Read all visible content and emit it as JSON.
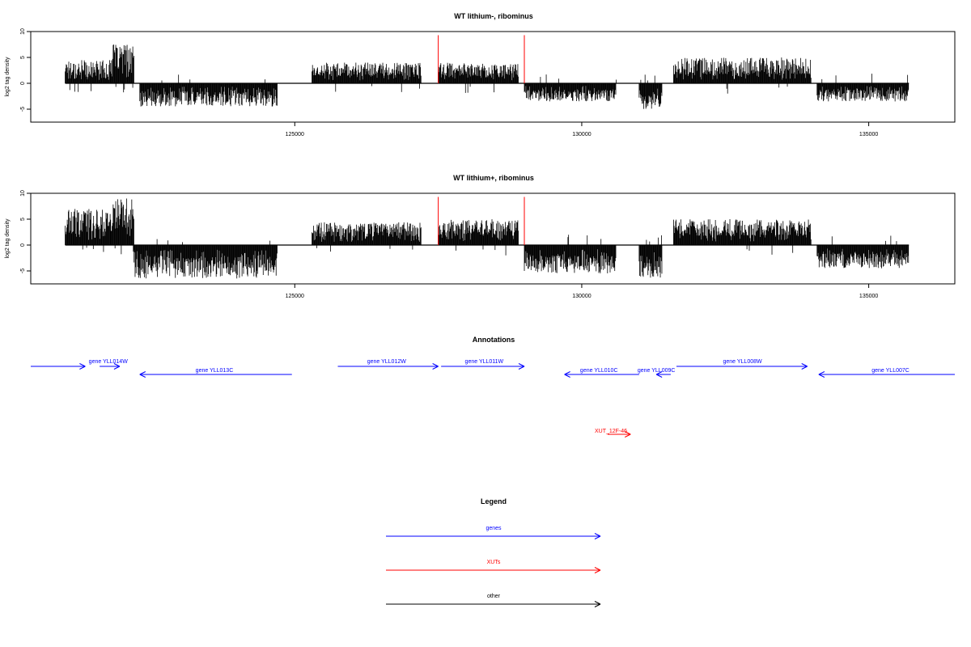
{
  "chart_data": [
    {
      "type": "bar",
      "title": "WT lithium-, ribominus",
      "xlabel": "",
      "ylabel": "log2 tag density",
      "xlim": [
        120400,
        136500
      ],
      "ylim": [
        -7.5,
        10
      ],
      "yticks": [
        -5,
        0,
        5,
        10
      ],
      "xticks": [
        125000,
        130000,
        135000
      ],
      "grid": false,
      "x_start": 121000,
      "x_end": 135700,
      "marker_positions": [
        127500,
        129000
      ],
      "marker_height": 9.3,
      "regions": [
        {
          "from": 121000,
          "to": 121800,
          "strand": "plus",
          "max": 4.5
        },
        {
          "from": 121800,
          "to": 122200,
          "strand": "plus",
          "max": 7.5
        },
        {
          "from": 122300,
          "to": 124700,
          "strand": "minus",
          "max": 4.5
        },
        {
          "from": 125300,
          "to": 127200,
          "strand": "plus",
          "max": 4.0
        },
        {
          "from": 127500,
          "to": 128900,
          "strand": "plus",
          "max": 4.0
        },
        {
          "from": 129000,
          "to": 130600,
          "strand": "minus",
          "max": 3.5
        },
        {
          "from": 131000,
          "to": 131400,
          "strand": "minus",
          "max": 5.0
        },
        {
          "from": 131600,
          "to": 134000,
          "strand": "plus",
          "max": 5.0
        },
        {
          "from": 134100,
          "to": 135700,
          "strand": "minus",
          "max": 3.5
        }
      ]
    },
    {
      "type": "bar",
      "title": "WT lithium+, ribominus",
      "xlabel": "",
      "ylabel": "log2 tag density",
      "xlim": [
        120400,
        136500
      ],
      "ylim": [
        -7.5,
        10
      ],
      "yticks": [
        -5,
        0,
        5,
        10
      ],
      "xticks": [
        125000,
        130000,
        135000
      ],
      "grid": false,
      "x_start": 121000,
      "x_end": 135700,
      "marker_positions": [
        127500,
        129000
      ],
      "marker_height": 9.3,
      "regions": [
        {
          "from": 121000,
          "to": 121800,
          "strand": "plus",
          "max": 7.0
        },
        {
          "from": 121800,
          "to": 122200,
          "strand": "plus",
          "max": 9.0
        },
        {
          "from": 122200,
          "to": 124700,
          "strand": "minus",
          "max": 6.5
        },
        {
          "from": 125300,
          "to": 127200,
          "strand": "plus",
          "max": 4.5
        },
        {
          "from": 127500,
          "to": 128900,
          "strand": "plus",
          "max": 5.0
        },
        {
          "from": 129000,
          "to": 130600,
          "strand": "minus",
          "max": 5.5
        },
        {
          "from": 131000,
          "to": 131400,
          "strand": "minus",
          "max": 6.5
        },
        {
          "from": 131600,
          "to": 134000,
          "strand": "plus",
          "max": 5.0
        },
        {
          "from": 134100,
          "to": 135700,
          "strand": "minus",
          "max": 4.5
        }
      ]
    }
  ],
  "annotations": {
    "title": "Annotations",
    "xlim": [
      120400,
      136500
    ],
    "genes": [
      {
        "label": "gene YLL014W",
        "from": 120400,
        "to": 121350,
        "dir": "right",
        "row": 0,
        "label_pos": 121750
      },
      {
        "label": "",
        "from": 121600,
        "to": 121950,
        "dir": "right",
        "row": 0,
        "label_pos": 121750
      },
      {
        "label": "gene YLL013C",
        "from": 122300,
        "to": 124950,
        "dir": "left",
        "row": 1,
        "label_pos": 123600
      },
      {
        "label": "gene YLL012W",
        "from": 125750,
        "to": 127500,
        "dir": "right",
        "row": 0,
        "label_pos": 126600
      },
      {
        "label": "gene YLL011W",
        "from": 127550,
        "to": 129000,
        "dir": "right",
        "row": 0,
        "label_pos": 128300
      },
      {
        "label": "gene YLL010C",
        "from": 129700,
        "to": 131000,
        "dir": "left",
        "row": 1,
        "label_pos": 130300
      },
      {
        "label": "gene YLL009C",
        "from": 131300,
        "to": 131550,
        "dir": "left",
        "row": 1,
        "label_pos": 131300
      },
      {
        "label": "gene YLL008W",
        "from": 131650,
        "to": 133930,
        "dir": "right",
        "row": 0,
        "label_pos": 132800
      },
      {
        "label": "gene YLL007C",
        "from": 134130,
        "to": 136500,
        "dir": "left",
        "row": 1,
        "label_pos": 135380
      }
    ],
    "xuts": [
      {
        "label": "XUT_12F-46",
        "from": 130450,
        "to": 130850,
        "dir": "right",
        "label_pos": 130650
      }
    ]
  },
  "legend": {
    "title": "Legend",
    "items": [
      {
        "label": "genes",
        "color": "#0000ff"
      },
      {
        "label": "XUTs",
        "color": "#ff0000"
      },
      {
        "label": "other",
        "color": "#000000"
      }
    ]
  },
  "colors": {
    "axis": "#000000",
    "signal": "#000000",
    "marker": "#ff0000",
    "gene": "#0000ff",
    "xut": "#ff0000",
    "other": "#000000"
  }
}
